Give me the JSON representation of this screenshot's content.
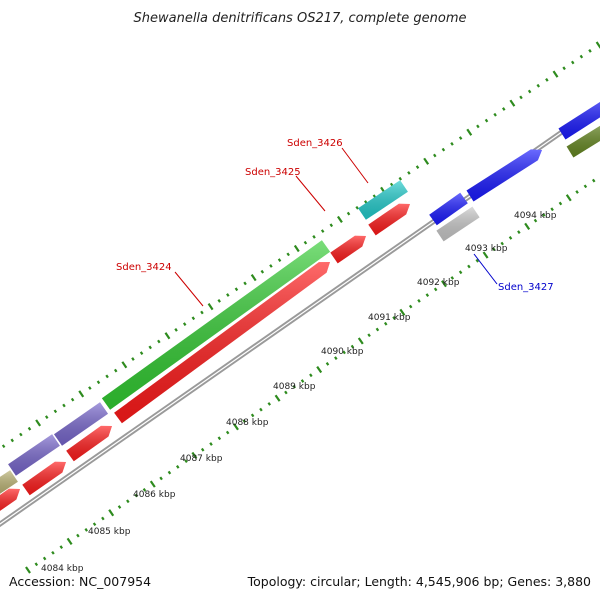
{
  "title": "Shewanella denitrificans OS217, complete genome",
  "footer": {
    "accession": "Accession: NC_007954",
    "summary": "Topology: circular; Length: 4,545,906 bp; Genes: 3,880"
  },
  "scale": {
    "tick_color": "#2e8b1e",
    "labels": [
      "4084 kbp",
      "4085 kbp",
      "4086 kbp",
      "4087 kbp",
      "4088 kbp",
      "4089 kbp",
      "4090 kbp",
      "4091 kbp",
      "4092 kbp",
      "4093 kbp",
      "4094 kbp"
    ]
  },
  "backbone_color": "#9a9a9a",
  "gene_labels": [
    {
      "name": "Sden_3424",
      "color": "#cc0000"
    },
    {
      "name": "Sden_3425",
      "color": "#cc0000"
    },
    {
      "name": "Sden_3426",
      "color": "#cc0000"
    },
    {
      "name": "Sden_3427",
      "color": "#0000cc"
    }
  ],
  "feature_colors": {
    "red": "#ff1a1a",
    "green": "#33cc33",
    "purple": "#7766cc",
    "olive": "#b8b070",
    "cyan": "#22cccc",
    "blue": "#1a1aff",
    "gray": "#c8c8c8",
    "dark_olive": "#668822"
  }
}
